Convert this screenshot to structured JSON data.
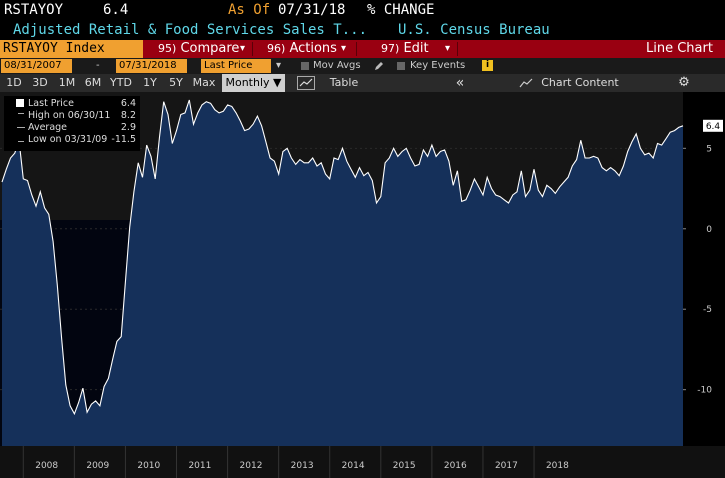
{
  "header": {
    "ticker": "RSTAYOY",
    "last_value": "6.4",
    "as_of_label": "As Of",
    "as_of_date": "07/31/18",
    "units": "% CHANGE",
    "description": "Adjusted Retail & Food Services Sales T...",
    "source": "U.S. Census Bureau"
  },
  "menu": {
    "security": "RSTAYOY Index",
    "compare_num": "95)",
    "compare_label": "Compare",
    "actions_num": "96)",
    "actions_label": "Actions",
    "edit_num": "97)",
    "edit_label": "Edit",
    "chart_type": "Line Chart",
    "dropdown_glyph": "▾"
  },
  "controls": {
    "start_date": "08/31/2007",
    "range_sep": "-",
    "end_date": "07/31/2018",
    "field": "Last Price",
    "mov_avgs": "Mov Avgs",
    "key_events": "Key Events",
    "info_glyph": "i"
  },
  "toolbar": {
    "periods": [
      "1D",
      "3D",
      "1M",
      "6M",
      "YTD",
      "1Y",
      "5Y",
      "Max"
    ],
    "frequency": "Monthly",
    "frequency_arrow": "▼",
    "table": "Table",
    "collapse": "«",
    "chart_content": "Chart Content",
    "settings_glyph": "⚙"
  },
  "legend": {
    "last_price_label": "Last Price",
    "last_price_value": "6.4",
    "high_label": "High on 06/30/11",
    "high_value": "8.2",
    "average_label": "Average",
    "average_value": "2.9",
    "low_label": "Low on 03/31/09",
    "low_value": "-11.5"
  },
  "colors": {
    "background": "#000000",
    "accent_orange": "#f0a030",
    "menu_red": "#990011",
    "title_cyan": "#5fd7e8",
    "area_fill": "#15305a",
    "line": "#ffffff"
  },
  "chart_data": {
    "type": "area",
    "title": "",
    "xlabel": "",
    "ylabel": "",
    "ylim": [
      -13.5,
      8.5
    ],
    "yticks": [
      5,
      0,
      -5,
      -10
    ],
    "x_tick_labels": [
      "2008",
      "2009",
      "2010",
      "2011",
      "2012",
      "2013",
      "2014",
      "2015",
      "2016",
      "2017",
      "2018"
    ],
    "last_value_label": "6.4",
    "x_start": "2007-08",
    "x_end": "2018-07",
    "series": [
      {
        "name": "Last Price",
        "values": [
          2.9,
          3.7,
          4.4,
          4.7,
          5.5,
          3.1,
          3.0,
          2.1,
          1.4,
          2.3,
          1.3,
          0.9,
          -0.8,
          -3.5,
          -6.8,
          -9.7,
          -11.0,
          -11.5,
          -10.8,
          -9.9,
          -11.4,
          -10.9,
          -10.7,
          -11.0,
          -9.8,
          -9.3,
          -8.1,
          -7.0,
          -6.7,
          -3.3,
          0.1,
          2.3,
          4.1,
          3.2,
          5.2,
          4.5,
          3.1,
          5.7,
          7.9,
          7.1,
          5.3,
          6.1,
          7.1,
          7.2,
          8.0,
          6.5,
          7.2,
          7.7,
          7.9,
          7.8,
          7.4,
          7.2,
          7.3,
          7.7,
          7.6,
          7.2,
          6.7,
          6.1,
          6.2,
          6.5,
          7.0,
          6.4,
          5.4,
          4.4,
          4.2,
          3.4,
          4.8,
          5.0,
          4.4,
          4.0,
          4.3,
          4.1,
          4.1,
          4.4,
          3.9,
          4.1,
          3.4,
          3.1,
          4.4,
          4.3,
          5.0,
          4.2,
          3.7,
          3.2,
          3.8,
          3.3,
          3.5,
          3.0,
          1.6,
          2.0,
          4.1,
          4.4,
          5.0,
          4.5,
          4.8,
          5.0,
          4.4,
          3.9,
          4.0,
          4.9,
          4.5,
          5.2,
          4.5,
          4.8,
          4.9,
          4.2,
          2.7,
          3.6,
          1.7,
          1.8,
          2.4,
          3.1,
          2.6,
          2.1,
          3.2,
          2.5,
          2.1,
          2.0,
          1.8,
          1.6,
          2.1,
          2.3,
          3.6,
          2.0,
          2.4,
          3.7,
          2.4,
          2.0,
          2.7,
          2.5,
          2.2,
          2.6,
          2.9,
          3.2,
          3.9,
          4.3,
          5.5,
          4.4,
          4.4,
          4.5,
          4.4,
          3.8,
          3.6,
          3.8,
          3.6,
          3.3,
          3.9,
          4.8,
          5.4,
          5.9,
          5.0,
          4.6,
          4.7,
          4.4,
          5.3,
          5.2,
          5.6,
          6.0,
          6.1,
          6.3,
          6.4
        ]
      }
    ]
  }
}
